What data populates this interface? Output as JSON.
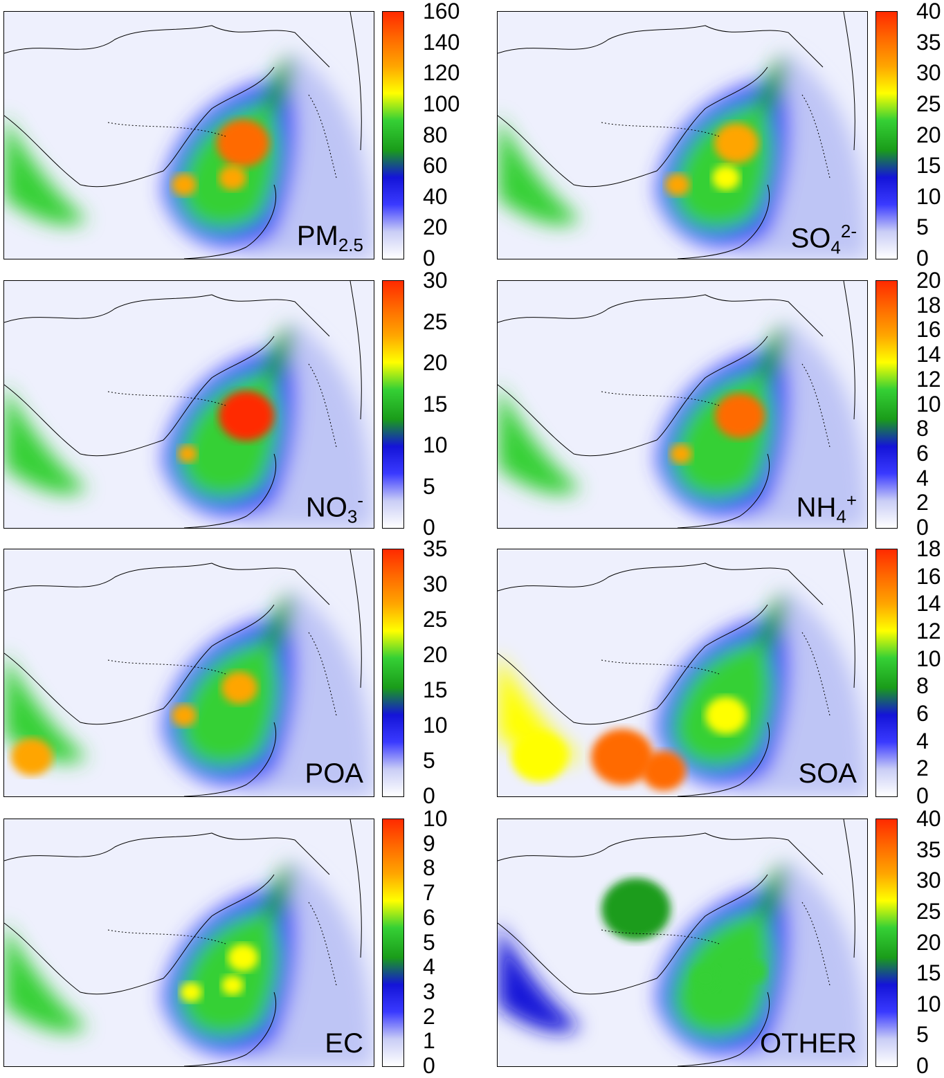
{
  "colors": {
    "scale": [
      "#ffffff",
      "#c9cdf6",
      "#3a3aff",
      "#1414d8",
      "#1a9c1a",
      "#35d035",
      "#ffff00",
      "#ffa500",
      "#ff6a00",
      "#ff2a00"
    ],
    "map_background": "#f4f6ff",
    "border": "#000000"
  },
  "panels": [
    {
      "id": "pm25",
      "name": "PM",
      "sub": "2.5",
      "sup": "",
      "ticks": [
        "0",
        "20",
        "40",
        "60",
        "80",
        "100",
        "120",
        "140",
        "160"
      ]
    },
    {
      "id": "so4",
      "name": "SO",
      "sub": "4",
      "sup": "2-",
      "ticks": [
        "0",
        "5",
        "10",
        "15",
        "20",
        "25",
        "30",
        "35",
        "40"
      ]
    },
    {
      "id": "no3",
      "name": "NO",
      "sub": "3",
      "sup": "-",
      "ticks": [
        "0",
        "5",
        "10",
        "15",
        "20",
        "25",
        "30"
      ]
    },
    {
      "id": "nh4",
      "name": "NH",
      "sub": "4",
      "sup": "+",
      "ticks": [
        "0",
        "2",
        "4",
        "6",
        "8",
        "10",
        "12",
        "14",
        "16",
        "18",
        "20"
      ]
    },
    {
      "id": "poa",
      "name": "POA",
      "sub": "",
      "sup": "",
      "ticks": [
        "0",
        "5",
        "10",
        "15",
        "20",
        "25",
        "30",
        "35"
      ]
    },
    {
      "id": "soa",
      "name": "SOA",
      "sub": "",
      "sup": "",
      "ticks": [
        "0",
        "2",
        "4",
        "6",
        "8",
        "10",
        "12",
        "14",
        "16",
        "18"
      ]
    },
    {
      "id": "ec",
      "name": "EC",
      "sub": "",
      "sup": "",
      "ticks": [
        "0",
        "1",
        "2",
        "3",
        "4",
        "5",
        "6",
        "7",
        "8",
        "9",
        "10"
      ]
    },
    {
      "id": "other",
      "name": "OTHER",
      "sub": "",
      "sup": "",
      "ticks": [
        "0",
        "5",
        "10",
        "15",
        "20",
        "25",
        "30",
        "35",
        "40"
      ]
    }
  ]
}
